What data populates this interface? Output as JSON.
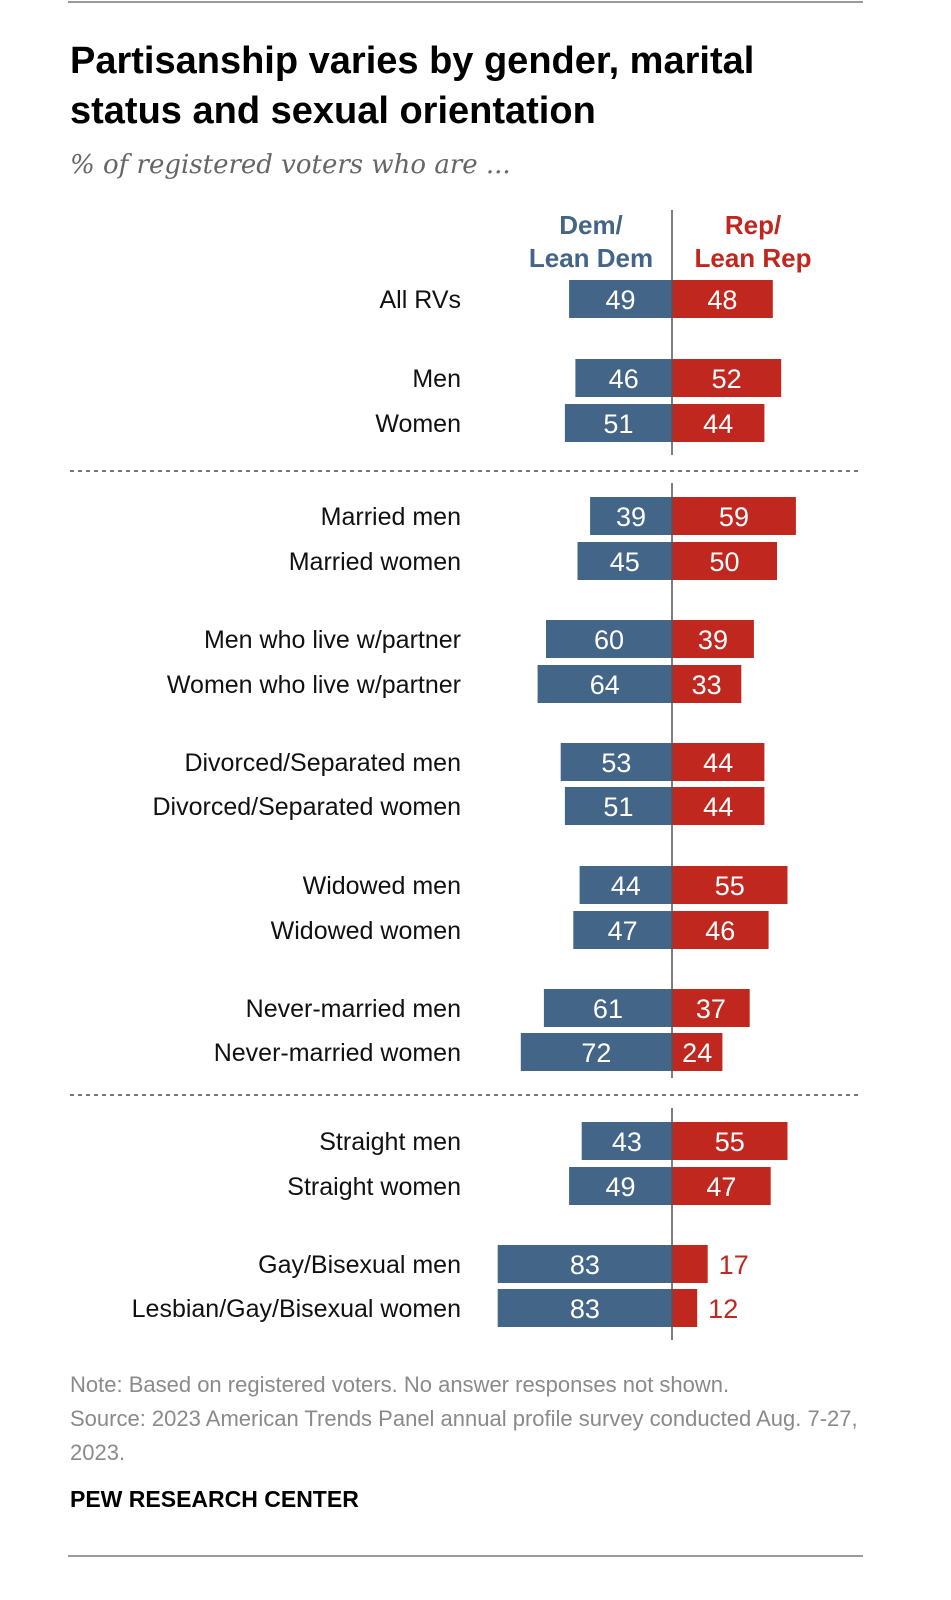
{
  "title": "Partisanship varies by gender, marital status and sexual orientation",
  "subtitle": "% of registered voters who are ...",
  "note": "Note: Based on registered voters. No answer responses not shown.",
  "source": "Source: 2023 American Trends Panel annual profile survey conducted Aug. 7-27, 2023.",
  "brand": "PEW RESEARCH CENTER",
  "colors": {
    "dem": "#436587",
    "rep": "#c0281f"
  },
  "chart_data": {
    "type": "bar",
    "orientation": "diverging-horizontal",
    "series_labels": {
      "dem": [
        "Dem/",
        "Lean Dem"
      ],
      "rep": [
        "Rep/",
        "Lean Rep"
      ]
    },
    "rows": [
      {
        "label": "All RVs",
        "dem": 49,
        "rep": 48,
        "group": 0
      },
      {
        "label": "Men",
        "dem": 46,
        "rep": 52,
        "group": 1
      },
      {
        "label": "Women",
        "dem": 51,
        "rep": 44,
        "group": 1
      },
      {
        "label": "Married men",
        "dem": 39,
        "rep": 59,
        "group": 2
      },
      {
        "label": "Married women",
        "dem": 45,
        "rep": 50,
        "group": 2
      },
      {
        "label": "Men who live w/partner",
        "dem": 60,
        "rep": 39,
        "group": 3
      },
      {
        "label": "Women who live w/partner",
        "dem": 64,
        "rep": 33,
        "group": 3
      },
      {
        "label": "Divorced/Separated men",
        "dem": 53,
        "rep": 44,
        "group": 4
      },
      {
        "label": "Divorced/Separated women",
        "dem": 51,
        "rep": 44,
        "group": 4
      },
      {
        "label": "Widowed men",
        "dem": 44,
        "rep": 55,
        "group": 5
      },
      {
        "label": "Widowed women",
        "dem": 47,
        "rep": 46,
        "group": 5
      },
      {
        "label": "Never-married men",
        "dem": 61,
        "rep": 37,
        "group": 6
      },
      {
        "label": "Never-married women",
        "dem": 72,
        "rep": 24,
        "group": 6
      },
      {
        "label": "Straight men",
        "dem": 43,
        "rep": 55,
        "group": 7
      },
      {
        "label": "Straight women",
        "dem": 49,
        "rep": 47,
        "group": 7
      },
      {
        "label": "Gay/Bisexual men",
        "dem": 83,
        "rep": 17,
        "group": 8
      },
      {
        "label": "Lesbian/Gay/Bisexual women",
        "dem": 83,
        "rep": 12,
        "group": 8
      }
    ]
  }
}
